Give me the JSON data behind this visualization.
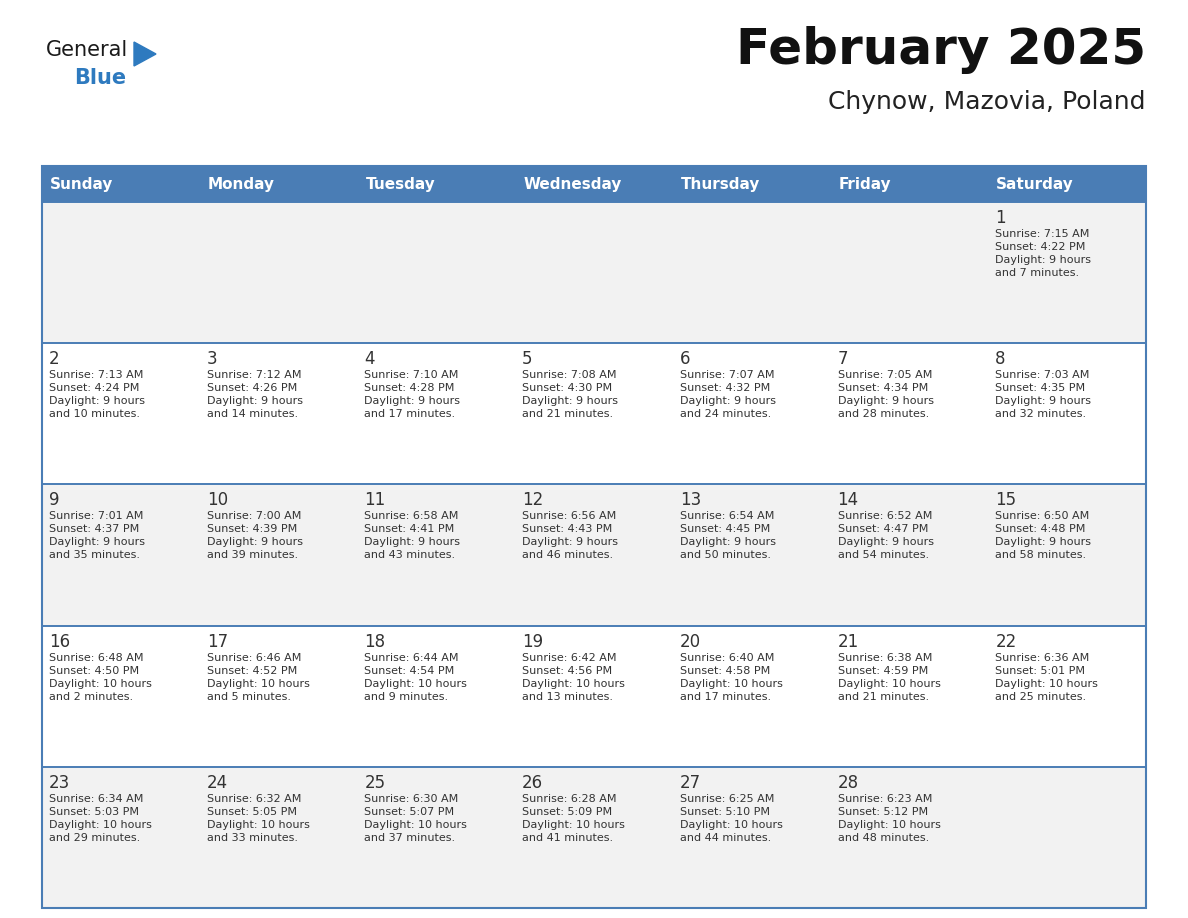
{
  "title": "February 2025",
  "subtitle": "Chynow, Mazovia, Poland",
  "header_bg": "#4A7DB5",
  "header_text": "#FFFFFF",
  "cell_bg_odd": "#F2F2F2",
  "cell_bg_even": "#FFFFFF",
  "border_color": "#4A7DB5",
  "text_color": "#333333",
  "days_of_week": [
    "Sunday",
    "Monday",
    "Tuesday",
    "Wednesday",
    "Thursday",
    "Friday",
    "Saturday"
  ],
  "calendar": [
    [
      {
        "day": null,
        "sunrise": null,
        "sunset": null,
        "daylight": null
      },
      {
        "day": null,
        "sunrise": null,
        "sunset": null,
        "daylight": null
      },
      {
        "day": null,
        "sunrise": null,
        "sunset": null,
        "daylight": null
      },
      {
        "day": null,
        "sunrise": null,
        "sunset": null,
        "daylight": null
      },
      {
        "day": null,
        "sunrise": null,
        "sunset": null,
        "daylight": null
      },
      {
        "day": null,
        "sunrise": null,
        "sunset": null,
        "daylight": null
      },
      {
        "day": 1,
        "sunrise": "7:15 AM",
        "sunset": "4:22 PM",
        "daylight": "9 hours\nand 7 minutes."
      }
    ],
    [
      {
        "day": 2,
        "sunrise": "7:13 AM",
        "sunset": "4:24 PM",
        "daylight": "9 hours\nand 10 minutes."
      },
      {
        "day": 3,
        "sunrise": "7:12 AM",
        "sunset": "4:26 PM",
        "daylight": "9 hours\nand 14 minutes."
      },
      {
        "day": 4,
        "sunrise": "7:10 AM",
        "sunset": "4:28 PM",
        "daylight": "9 hours\nand 17 minutes."
      },
      {
        "day": 5,
        "sunrise": "7:08 AM",
        "sunset": "4:30 PM",
        "daylight": "9 hours\nand 21 minutes."
      },
      {
        "day": 6,
        "sunrise": "7:07 AM",
        "sunset": "4:32 PM",
        "daylight": "9 hours\nand 24 minutes."
      },
      {
        "day": 7,
        "sunrise": "7:05 AM",
        "sunset": "4:34 PM",
        "daylight": "9 hours\nand 28 minutes."
      },
      {
        "day": 8,
        "sunrise": "7:03 AM",
        "sunset": "4:35 PM",
        "daylight": "9 hours\nand 32 minutes."
      }
    ],
    [
      {
        "day": 9,
        "sunrise": "7:01 AM",
        "sunset": "4:37 PM",
        "daylight": "9 hours\nand 35 minutes."
      },
      {
        "day": 10,
        "sunrise": "7:00 AM",
        "sunset": "4:39 PM",
        "daylight": "9 hours\nand 39 minutes."
      },
      {
        "day": 11,
        "sunrise": "6:58 AM",
        "sunset": "4:41 PM",
        "daylight": "9 hours\nand 43 minutes."
      },
      {
        "day": 12,
        "sunrise": "6:56 AM",
        "sunset": "4:43 PM",
        "daylight": "9 hours\nand 46 minutes."
      },
      {
        "day": 13,
        "sunrise": "6:54 AM",
        "sunset": "4:45 PM",
        "daylight": "9 hours\nand 50 minutes."
      },
      {
        "day": 14,
        "sunrise": "6:52 AM",
        "sunset": "4:47 PM",
        "daylight": "9 hours\nand 54 minutes."
      },
      {
        "day": 15,
        "sunrise": "6:50 AM",
        "sunset": "4:48 PM",
        "daylight": "9 hours\nand 58 minutes."
      }
    ],
    [
      {
        "day": 16,
        "sunrise": "6:48 AM",
        "sunset": "4:50 PM",
        "daylight": "10 hours\nand 2 minutes."
      },
      {
        "day": 17,
        "sunrise": "6:46 AM",
        "sunset": "4:52 PM",
        "daylight": "10 hours\nand 5 minutes."
      },
      {
        "day": 18,
        "sunrise": "6:44 AM",
        "sunset": "4:54 PM",
        "daylight": "10 hours\nand 9 minutes."
      },
      {
        "day": 19,
        "sunrise": "6:42 AM",
        "sunset": "4:56 PM",
        "daylight": "10 hours\nand 13 minutes."
      },
      {
        "day": 20,
        "sunrise": "6:40 AM",
        "sunset": "4:58 PM",
        "daylight": "10 hours\nand 17 minutes."
      },
      {
        "day": 21,
        "sunrise": "6:38 AM",
        "sunset": "4:59 PM",
        "daylight": "10 hours\nand 21 minutes."
      },
      {
        "day": 22,
        "sunrise": "6:36 AM",
        "sunset": "5:01 PM",
        "daylight": "10 hours\nand 25 minutes."
      }
    ],
    [
      {
        "day": 23,
        "sunrise": "6:34 AM",
        "sunset": "5:03 PM",
        "daylight": "10 hours\nand 29 minutes."
      },
      {
        "day": 24,
        "sunrise": "6:32 AM",
        "sunset": "5:05 PM",
        "daylight": "10 hours\nand 33 minutes."
      },
      {
        "day": 25,
        "sunrise": "6:30 AM",
        "sunset": "5:07 PM",
        "daylight": "10 hours\nand 37 minutes."
      },
      {
        "day": 26,
        "sunrise": "6:28 AM",
        "sunset": "5:09 PM",
        "daylight": "10 hours\nand 41 minutes."
      },
      {
        "day": 27,
        "sunrise": "6:25 AM",
        "sunset": "5:10 PM",
        "daylight": "10 hours\nand 44 minutes."
      },
      {
        "day": 28,
        "sunrise": "6:23 AM",
        "sunset": "5:12 PM",
        "daylight": "10 hours\nand 48 minutes."
      },
      {
        "day": null,
        "sunrise": null,
        "sunset": null,
        "daylight": null
      }
    ]
  ],
  "logo_text_general": "General",
  "logo_text_blue": "Blue",
  "logo_color_general": "#1a1a1a",
  "logo_color_blue": "#2e7abf",
  "logo_triangle_color": "#2e7abf",
  "fig_width": 11.88,
  "fig_height": 9.18,
  "dpi": 100
}
